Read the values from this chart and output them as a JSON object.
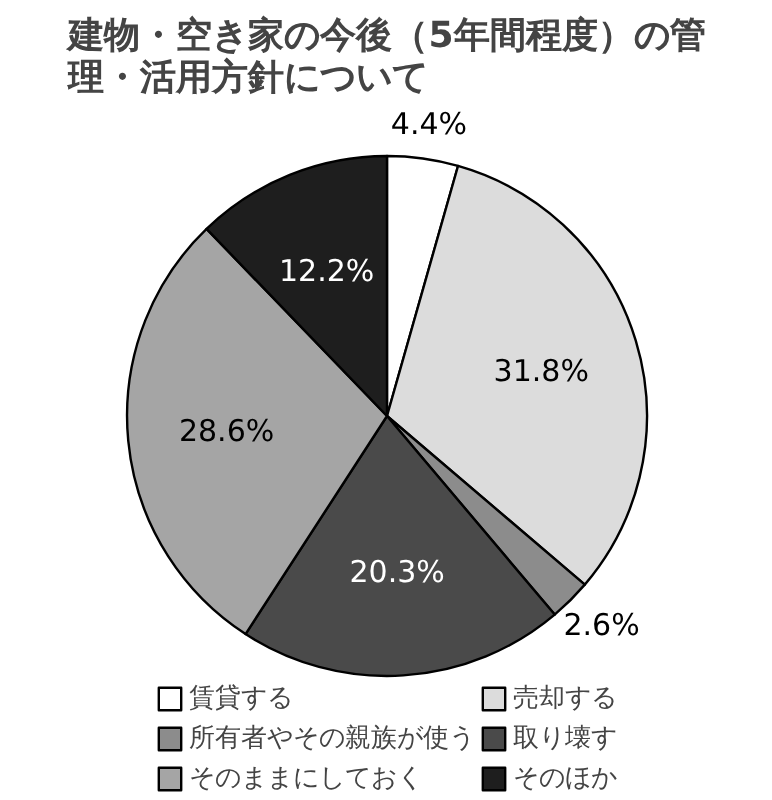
{
  "chart_data": {
    "type": "pie",
    "title": "建物・空き家の今後（5年間程度）の管理・活用方針について",
    "categories": [
      "賃貸する",
      "売却する",
      "所有者やその親族が使う",
      "取り壊す",
      "そのままにしておく",
      "そのほか"
    ],
    "values": [
      4.4,
      31.8,
      2.6,
      20.3,
      28.6,
      12.2
    ],
    "value_labels": [
      "4.4%",
      "31.8%",
      "2.6%",
      "20.3%",
      "28.6%",
      "12.2%"
    ],
    "colors": [
      "#ffffff",
      "#dcdcdc",
      "#8c8c8c",
      "#4a4a4a",
      "#a5a5a5",
      "#1e1e1e"
    ],
    "legend": "bottom"
  }
}
